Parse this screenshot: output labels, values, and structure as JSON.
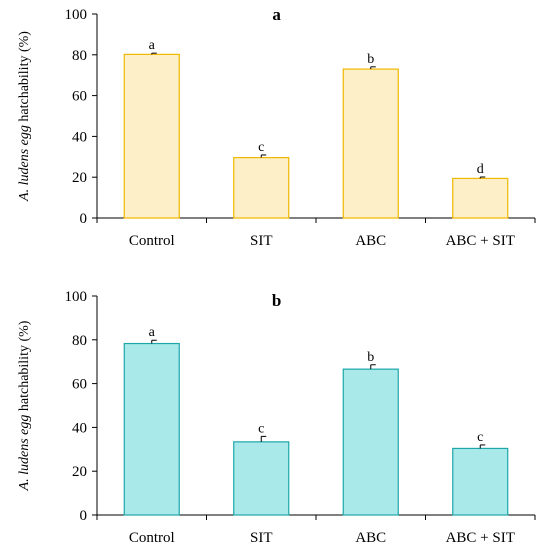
{
  "chart_data": [
    {
      "type": "bar",
      "title": "a",
      "ylabel_italic": "A. ludens egg",
      "ylabel_rest": " hatchability (%)",
      "categories": [
        "Control",
        "SIT",
        "ABC",
        "ABC + SIT"
      ],
      "values": [
        80.2,
        29.6,
        73.0,
        19.4
      ],
      "errors": [
        0.6,
        1.3,
        1.1,
        0.7
      ],
      "letters": [
        "a",
        "c",
        "b",
        "d"
      ],
      "ylim": [
        0,
        100
      ],
      "yticks": [
        "0",
        "20",
        "40",
        "60",
        "80",
        "100"
      ],
      "bar_fill": "#fdf0c8",
      "bar_stroke": "#f0b800",
      "grid": false
    },
    {
      "type": "bar",
      "title": "b",
      "ylabel_italic": "A. ludens egg",
      "ylabel_rest": " hatchability (%)",
      "categories": [
        "Control",
        "SIT",
        "ABC",
        "ABC + SIT"
      ],
      "values": [
        78.3,
        33.4,
        66.6,
        30.4
      ],
      "errors": [
        1.5,
        2.5,
        2.0,
        1.6
      ],
      "letters": [
        "a",
        "c",
        "b",
        "c"
      ],
      "ylim": [
        0,
        100
      ],
      "yticks": [
        "0",
        "20",
        "40",
        "60",
        "80",
        "100"
      ],
      "bar_fill": "#a9e9ea",
      "bar_stroke": "#1ea7a8",
      "grid": false
    }
  ]
}
